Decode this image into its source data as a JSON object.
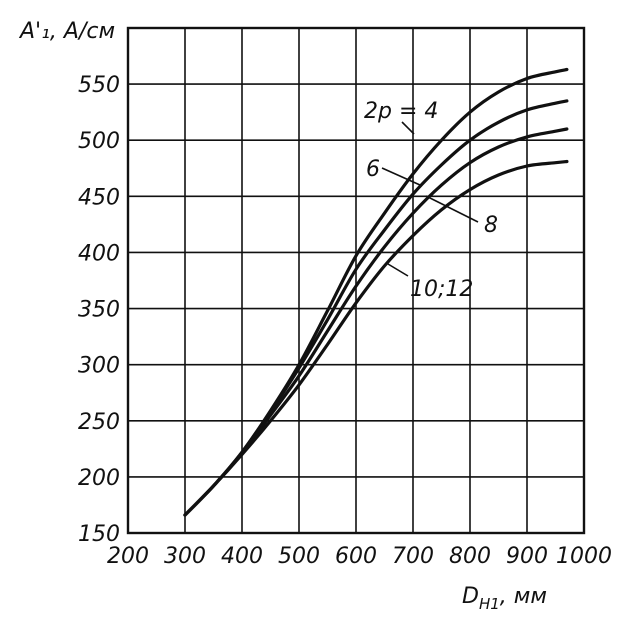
{
  "chart_data": {
    "type": "line",
    "ylabel": "A'₁, A/см",
    "xlabel": "D",
    "xlabel_sub": "H1",
    "xlabel_unit": ", мм",
    "xlim": [
      200,
      1000
    ],
    "ylim": [
      150,
      600
    ],
    "x_ticks": [
      200,
      300,
      400,
      500,
      600,
      700,
      800,
      900,
      1000
    ],
    "y_ticks": [
      150,
      200,
      250,
      300,
      350,
      400,
      450,
      500,
      550
    ],
    "x_tick_labels": [
      "200",
      "300",
      "400",
      "500",
      "600",
      "700",
      "800",
      "900",
      "1000"
    ],
    "y_tick_labels": [
      "150",
      "200",
      "250",
      "300",
      "350",
      "400",
      "450",
      "500",
      "550"
    ],
    "x_grid_step": 100,
    "y_grid_step": 50,
    "grid": true,
    "series": [
      {
        "name": "2p = 4",
        "x": [
          300,
          350,
          400,
          450,
          500,
          550,
          600,
          650,
          700,
          750,
          800,
          850,
          900,
          950,
          970
        ],
        "y": [
          166,
          192,
          222,
          259,
          300,
          348,
          397,
          435,
          470,
          500,
          525,
          543,
          555,
          561,
          563
        ]
      },
      {
        "name": "6",
        "x": [
          300,
          350,
          400,
          450,
          500,
          550,
          600,
          650,
          700,
          750,
          800,
          850,
          900,
          950,
          970
        ],
        "y": [
          166,
          192,
          222,
          258,
          297,
          340,
          385,
          420,
          452,
          478,
          500,
          516,
          527,
          533,
          535
        ]
      },
      {
        "name": "8",
        "x": [
          300,
          350,
          400,
          450,
          500,
          550,
          600,
          650,
          700,
          750,
          800,
          850,
          900,
          950,
          970
        ],
        "y": [
          166,
          192,
          221,
          255,
          290,
          330,
          370,
          405,
          435,
          460,
          480,
          494,
          503,
          508,
          510
        ]
      },
      {
        "name": "10;12",
        "x": [
          300,
          350,
          400,
          450,
          500,
          550,
          600,
          650,
          700,
          750,
          800,
          850,
          900,
          950,
          970
        ],
        "y": [
          166,
          192,
          220,
          250,
          282,
          318,
          355,
          388,
          415,
          438,
          456,
          469,
          477,
          480,
          481
        ]
      }
    ]
  }
}
